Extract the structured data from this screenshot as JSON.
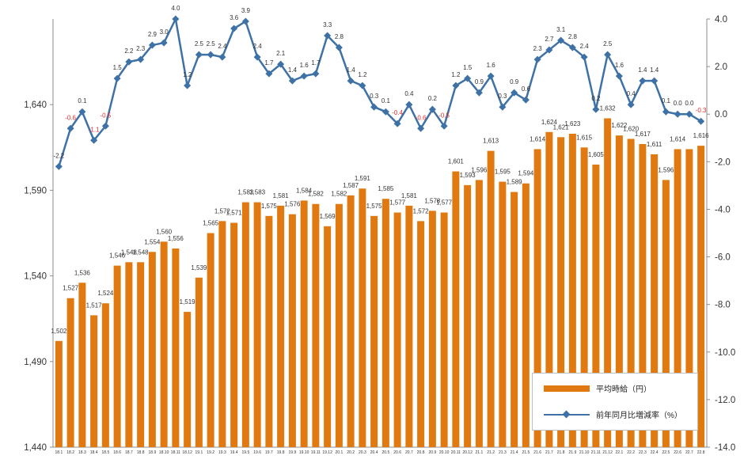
{
  "chart_data": {
    "type": "bar+line",
    "categories": [
      "18.1",
      "18.2",
      "18.3",
      "18.4",
      "18.5",
      "18.6",
      "18.7",
      "18.8",
      "18.9",
      "18.10",
      "18.11",
      "18.12",
      "19.1",
      "19.2",
      "19.3",
      "19.4",
      "19.5",
      "19.6",
      "19.7",
      "19.8",
      "19.9",
      "19.10",
      "19.11",
      "19.12",
      "20.1",
      "20.2",
      "20.3",
      "20.4",
      "20.5",
      "20.6",
      "20.7",
      "20.8",
      "20.9",
      "20.10",
      "20.11",
      "20.12",
      "21.1",
      "21.2",
      "21.3",
      "21.4",
      "21.5",
      "21.6",
      "21.7",
      "21.8",
      "21.9",
      "21.10",
      "21.11",
      "21.12",
      "22.1",
      "22.2",
      "22.3",
      "22.4",
      "22.5",
      "22.6",
      "22.7",
      "22.8"
    ],
    "series": [
      {
        "name": "平均時給（円）",
        "type": "bar",
        "axis": "left",
        "color": "#e07a10",
        "values": [
          1502,
          1527,
          1536,
          1517,
          1524,
          1546,
          1548,
          1548,
          1554,
          1560,
          1556,
          1519,
          1539,
          1565,
          1572,
          1571,
          1583,
          1583,
          1575,
          1581,
          1576,
          1584,
          1582,
          1569,
          1582,
          1587,
          1591,
          1575,
          1585,
          1577,
          1581,
          1572,
          1578,
          1577,
          1601,
          1593,
          1596,
          1613,
          1595,
          1589,
          1594,
          1614,
          1624,
          1621,
          1623,
          1615,
          1605,
          1632,
          1622,
          1620,
          1617,
          1611,
          1596,
          1614,
          1614,
          1616
        ],
        "labels": [
          "1,502",
          "1,527",
          "1,536",
          "1,517",
          "1,524",
          "1,546",
          "1,548",
          "1,548",
          "1,554",
          "1,560",
          "1,556",
          "1,519",
          "1,539",
          "1,565",
          "1,572",
          "1,571",
          "1,583",
          "1,583",
          "1,575",
          "1,581",
          "1,576",
          "1,584",
          "1,582",
          "1,569",
          "1,582",
          "1,587",
          "1,591",
          "1,575",
          "1,585",
          "1,577",
          "1,581",
          "1,572",
          "1,578",
          "1,577",
          "1,601",
          "1,593",
          "1,596",
          "1,613",
          "1,595",
          "1,589",
          "1,594",
          "1,614",
          "1,624",
          "1,621",
          "1,623",
          "1,615",
          "1,605",
          "1,632",
          "1,622",
          "1,620",
          "1,617",
          "1,611",
          "1,596",
          "1,614",
          "",
          "1,616"
        ]
      },
      {
        "name": "前年同月比増減率（%）",
        "type": "line",
        "axis": "right",
        "color": "#3e72a6",
        "values": [
          -2.2,
          -0.6,
          0.1,
          -1.1,
          -0.5,
          1.5,
          2.2,
          2.3,
          2.9,
          3.0,
          4.0,
          1.2,
          2.5,
          2.5,
          2.4,
          3.6,
          3.9,
          2.4,
          1.7,
          2.1,
          1.4,
          1.6,
          1.7,
          3.3,
          2.8,
          1.4,
          1.2,
          0.3,
          0.1,
          -0.4,
          0.4,
          -0.6,
          0.2,
          -0.5,
          1.2,
          1.5,
          0.9,
          1.6,
          0.3,
          0.9,
          0.6,
          2.3,
          2.7,
          3.1,
          2.8,
          2.4,
          0.2,
          2.5,
          1.6,
          0.4,
          1.4,
          1.4,
          0.1,
          0.0,
          0.0,
          -0.3
        ],
        "labels": [
          "-2.2",
          "-0.6",
          "0.1",
          "-1.1",
          "-0.5",
          "1.5",
          "2.2",
          "2.3",
          "2.9",
          "3.0",
          "4.0",
          "1.2",
          "2.5",
          "2.5",
          "2.4",
          "3.6",
          "3.9",
          "2.4",
          "1.7",
          "2.1",
          "1.4",
          "1.6",
          "1.7",
          "3.3",
          "2.8",
          "1.4",
          "1.2",
          "0.3",
          "0.1",
          "-0.4",
          "0.4",
          "-0.6",
          "0.2",
          "-0.5",
          "1.2",
          "1.5",
          "0.9",
          "1.6",
          "0.3",
          "0.9",
          "0.6",
          "2.3",
          "2.7",
          "3.1",
          "2.8",
          "2.4",
          "0.2",
          "2.5",
          "1.6",
          "0.4",
          "1.4",
          "1.4",
          "0.1",
          "0.0",
          "0.0",
          "-0.3"
        ]
      }
    ],
    "y_left": {
      "min": 1440,
      "max": 1690,
      "ticks": [
        1440,
        1490,
        1540,
        1590,
        1640
      ],
      "tick_labels": [
        "1,440",
        "1,490",
        "1,540",
        "1,590",
        "1,640"
      ]
    },
    "y_right": {
      "min": -14.0,
      "max": 4.0,
      "ticks": [
        4.0,
        2.0,
        0.0,
        -2.0,
        -4.0,
        -6.0,
        -8.0,
        -10.0,
        -12.0,
        -14.0
      ],
      "tick_labels": [
        "4.0",
        "2.0",
        "0.0",
        "-2.0",
        "-4.0",
        "-6.0",
        "-8.0",
        "-10.0",
        "-12.0",
        "-14.0"
      ]
    },
    "grid": false,
    "legend_position": "bottom-right",
    "colors": {
      "bar": "#e07a10",
      "line": "#3e72a6",
      "negative_label": "#e03030"
    }
  },
  "legend": {
    "bar_label": "平均時給（円）",
    "line_label": "前年同月比増減率（%）"
  }
}
